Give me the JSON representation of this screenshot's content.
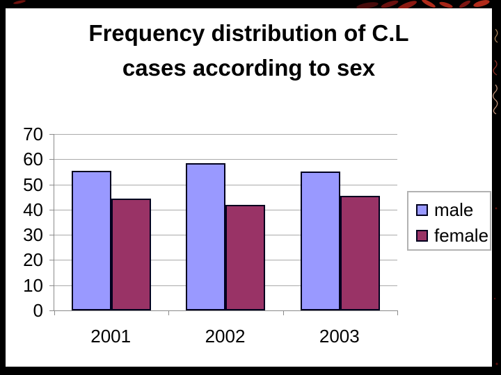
{
  "slide": {
    "title": {
      "lines": [
        "Frequency distribution of C.L",
        "cases according to sex"
      ]
    }
  },
  "chart_data": {
    "type": "bar",
    "title": "Frequency distribution of C.L cases according to sex",
    "categories": [
      "2001",
      "2002",
      "2003"
    ],
    "series": [
      {
        "name": "male",
        "color": "#9999ff",
        "values": [
          55.5,
          58.5,
          55.0
        ]
      },
      {
        "name": "female",
        "color": "#993366",
        "values": [
          44.5,
          42.0,
          45.5
        ]
      }
    ],
    "xlabel": "",
    "ylabel": "",
    "ylim": [
      0,
      70
    ],
    "yticks": [
      0,
      10,
      20,
      30,
      40,
      50,
      60,
      70
    ],
    "grid": true,
    "legend_position": "right",
    "legend_entries": [
      "male",
      "female"
    ]
  },
  "colors": {
    "male_bar": "#9999ff",
    "female_bar": "#993366",
    "bar_border": "#00001e",
    "gridline": "#a9a9a9",
    "axis": "#8a8a8a",
    "slide_background": "#ffffff",
    "frame": "#000000",
    "text": "#000000",
    "art_red": "#a52517",
    "art_tan": "#cfa06e"
  }
}
